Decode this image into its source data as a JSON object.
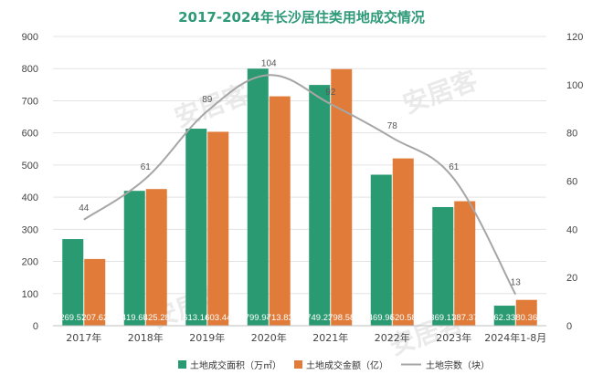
{
  "chart_data": {
    "type": "bar",
    "title": "2017-2024年长沙居住类用地成交情况",
    "categories": [
      "2017年",
      "2018年",
      "2019年",
      "2020年",
      "2021年",
      "2022年",
      "2023年",
      "2024年1-8月"
    ],
    "series": [
      {
        "name": "土地成交面积（万㎡）",
        "type": "bar",
        "axis": "left",
        "color": "#2a9a72",
        "values": [
          269.57,
          419.65,
          613.14,
          799.94,
          749.23,
          469.94,
          369.17,
          62.33
        ]
      },
      {
        "name": "土地成交金额（亿）",
        "type": "bar",
        "axis": "left",
        "color": "#e07b39",
        "values": [
          207.62,
          425.28,
          603.44,
          713.83,
          798.58,
          520.58,
          387.37,
          80.36
        ]
      },
      {
        "name": "土地宗数（块）",
        "type": "line",
        "axis": "right",
        "color": "#a6a6a6",
        "values": [
          44,
          61,
          89,
          104,
          92,
          78,
          61,
          13
        ]
      }
    ],
    "ylim_left": [
      0,
      900
    ],
    "yticks_left": [
      0,
      100,
      200,
      300,
      400,
      500,
      600,
      700,
      800,
      900
    ],
    "ylim_right": [
      0,
      120
    ],
    "yticks_right": [
      0,
      20,
      40,
      60,
      80,
      100,
      120
    ],
    "grid": "horizontal",
    "legend_position": "bottom",
    "watermark": "安居客"
  }
}
